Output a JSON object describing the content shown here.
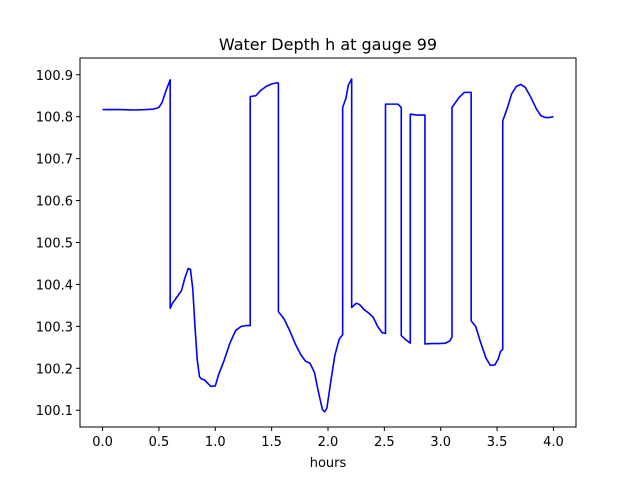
{
  "chart_data": {
    "type": "line",
    "title": "Water Depth h at gauge 99",
    "xlabel": "hours",
    "ylabel": "",
    "xlim": [
      -0.2,
      4.2
    ],
    "ylim": [
      100.06,
      100.94
    ],
    "xticks": [
      0.0,
      0.5,
      1.0,
      1.5,
      2.0,
      2.5,
      3.0,
      3.5,
      4.0
    ],
    "xtick_labels": [
      "0.0",
      "0.5",
      "1.0",
      "1.5",
      "2.0",
      "2.5",
      "3.0",
      "3.5",
      "4.0"
    ],
    "yticks": [
      100.1,
      100.2,
      100.3,
      100.4,
      100.5,
      100.6,
      100.7,
      100.8,
      100.9
    ],
    "ytick_labels": [
      "100.1",
      "100.2",
      "100.3",
      "100.4",
      "100.5",
      "100.6",
      "100.7",
      "100.8",
      "100.9"
    ],
    "grid": false,
    "legend": "none",
    "series": [
      {
        "color": "#0000ff",
        "x": [
          0.0,
          0.15,
          0.3,
          0.45,
          0.5,
          0.53,
          0.56,
          0.6,
          0.6,
          0.62,
          0.66,
          0.7,
          0.73,
          0.76,
          0.78,
          0.8,
          0.82,
          0.84,
          0.86,
          0.88,
          0.9,
          0.93,
          0.96,
          1.0,
          1.03,
          1.08,
          1.13,
          1.18,
          1.23,
          1.28,
          1.31,
          1.31,
          1.36,
          1.4,
          1.45,
          1.5,
          1.55,
          1.56,
          1.56,
          1.61,
          1.66,
          1.71,
          1.76,
          1.8,
          1.84,
          1.88,
          1.91,
          1.95,
          1.97,
          1.99,
          2.02,
          2.06,
          2.1,
          2.13,
          2.13,
          2.16,
          2.18,
          2.21,
          2.21,
          2.25,
          2.28,
          2.32,
          2.36,
          2.4,
          2.44,
          2.48,
          2.51,
          2.51,
          2.57,
          2.62,
          2.65,
          2.65,
          2.69,
          2.73,
          2.73,
          2.79,
          2.86,
          2.86,
          2.92,
          2.98,
          3.04,
          3.08,
          3.1,
          3.1,
          3.16,
          3.21,
          3.27,
          3.27,
          3.31,
          3.35,
          3.4,
          3.44,
          3.48,
          3.51,
          3.53,
          3.55,
          3.55,
          3.59,
          3.63,
          3.67,
          3.71,
          3.75,
          3.8,
          3.85,
          3.89,
          3.93,
          3.96,
          4.0
        ],
        "y": [
          100.817,
          100.817,
          100.816,
          100.818,
          100.822,
          100.835,
          100.86,
          100.888,
          100.343,
          100.355,
          100.37,
          100.385,
          100.415,
          100.438,
          100.436,
          100.39,
          100.3,
          100.22,
          100.18,
          100.174,
          100.173,
          100.165,
          100.157,
          100.158,
          100.185,
          100.22,
          100.26,
          100.29,
          100.3,
          100.302,
          100.302,
          100.848,
          100.85,
          100.862,
          100.872,
          100.878,
          100.881,
          100.88,
          100.335,
          100.318,
          100.29,
          100.258,
          100.232,
          100.217,
          100.212,
          100.19,
          100.15,
          100.102,
          100.096,
          100.105,
          100.16,
          100.23,
          100.27,
          100.28,
          100.822,
          100.845,
          100.875,
          100.89,
          100.345,
          100.355,
          100.352,
          100.34,
          100.332,
          100.322,
          100.3,
          100.285,
          100.283,
          100.83,
          100.83,
          100.83,
          100.822,
          100.278,
          100.268,
          100.26,
          100.806,
          100.804,
          100.804,
          100.258,
          100.259,
          100.259,
          100.26,
          100.265,
          100.275,
          100.822,
          100.845,
          100.858,
          100.858,
          100.313,
          100.3,
          100.265,
          100.225,
          100.207,
          100.208,
          100.222,
          100.24,
          100.245,
          100.79,
          100.82,
          100.855,
          100.872,
          100.877,
          100.87,
          100.846,
          100.818,
          100.802,
          100.798,
          100.798,
          100.8
        ]
      }
    ]
  }
}
